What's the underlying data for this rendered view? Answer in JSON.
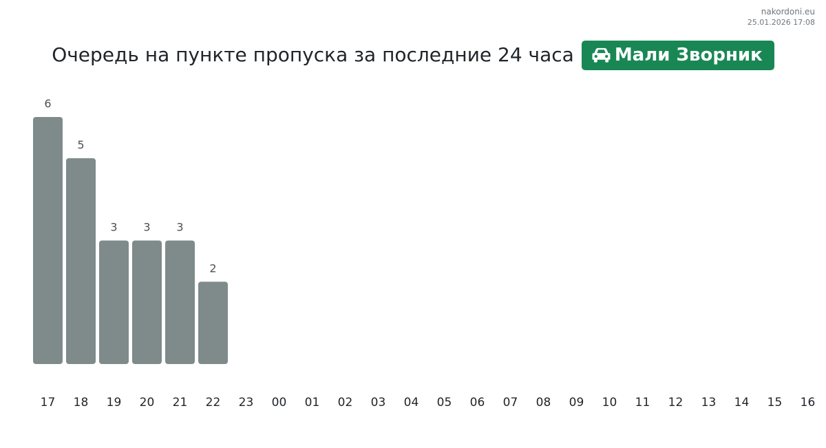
{
  "watermark": {
    "site": "nakordoni.eu",
    "timestamp": "25.01.2026 17:08"
  },
  "header": {
    "title": "Очередь на пункте пропуска за последние 24 часа",
    "badge": {
      "label": "Мали Зворник",
      "icon": "car-icon",
      "color": "#198754"
    }
  },
  "chart_data": {
    "type": "bar",
    "categories": [
      "17",
      "18",
      "19",
      "20",
      "21",
      "22",
      "23",
      "00",
      "01",
      "02",
      "03",
      "04",
      "05",
      "06",
      "07",
      "08",
      "09",
      "10",
      "11",
      "12",
      "13",
      "14",
      "15",
      "16"
    ],
    "values": [
      6,
      5,
      3,
      3,
      3,
      2,
      null,
      null,
      null,
      null,
      null,
      null,
      null,
      null,
      null,
      null,
      null,
      null,
      null,
      null,
      null,
      null,
      null,
      null
    ],
    "title": "Очередь на пункте пропуска за последние 24 часа",
    "xlabel": "",
    "ylabel": "",
    "ylim": [
      0,
      6
    ],
    "grid": false,
    "data_labels": true,
    "bar_color": "#7f8b8b"
  }
}
